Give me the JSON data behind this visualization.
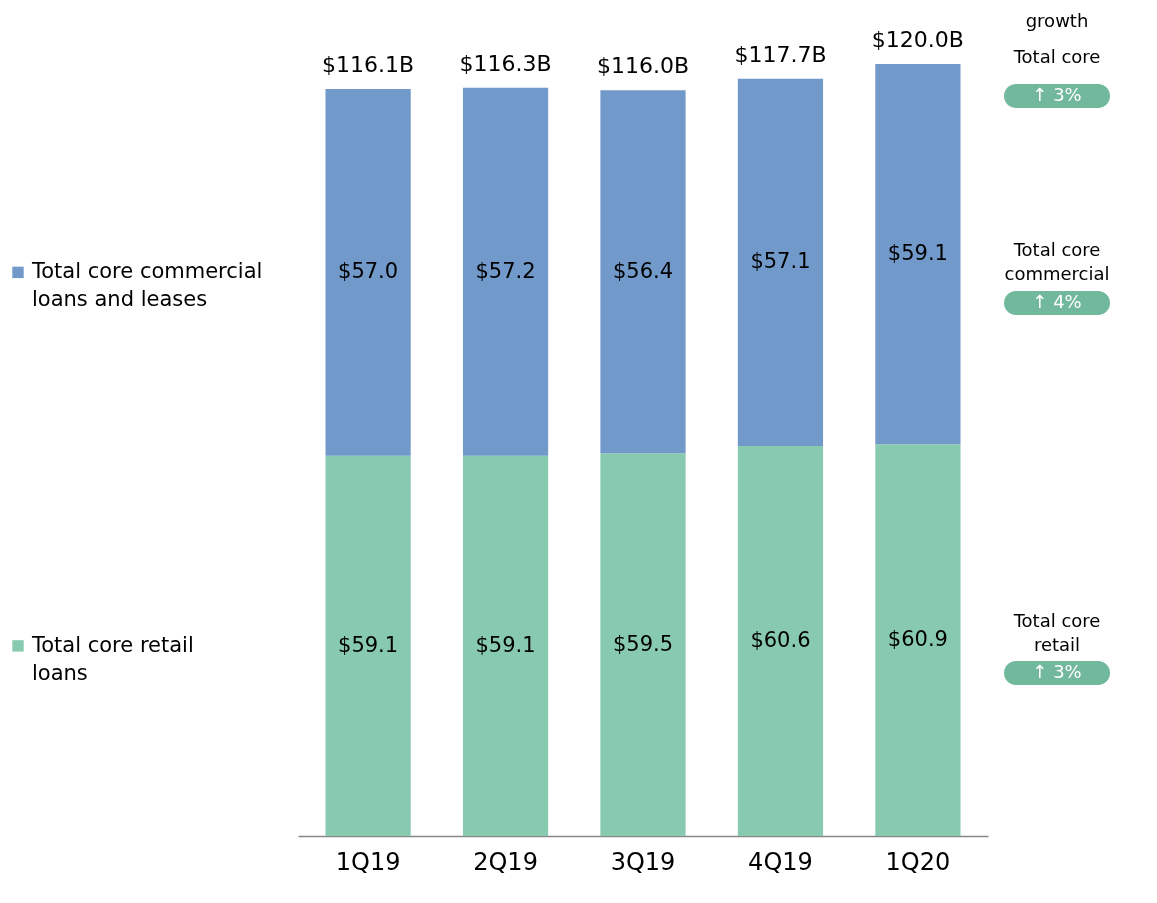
{
  "chart_data": {
    "type": "bar",
    "stacked": true,
    "legend": "left",
    "categories": [
      "1Q19",
      "2Q19",
      "3Q19",
      "4Q19",
      "1Q20"
    ],
    "series": [
      {
        "name": "Total core retail loans",
        "color": "#88cab0",
        "values": [
          59.1,
          59.1,
          59.5,
          60.6,
          60.9
        ],
        "value_labels": [
          "$59.1",
          "$59.1",
          "$59.5",
          "$60.6",
          "$60.9"
        ]
      },
      {
        "name": "Total core commercial loans and leases",
        "color": "#7199c9",
        "values": [
          57.0,
          57.2,
          56.4,
          57.1,
          59.1
        ],
        "value_labels": [
          "$57.0",
          "$57.2",
          "$56.4",
          "$57.1",
          "$59.1"
        ]
      }
    ],
    "totals": [
      "$116.1B",
      "$116.3B",
      "$116.0B",
      "$117.7B",
      "$120.0B"
    ],
    "annotations": [
      "growth",
      "Total core",
      "↑ 3%",
      "Total core commercial",
      "↑ 4%",
      "Total core retail",
      "↑ 3%"
    ]
  }
}
